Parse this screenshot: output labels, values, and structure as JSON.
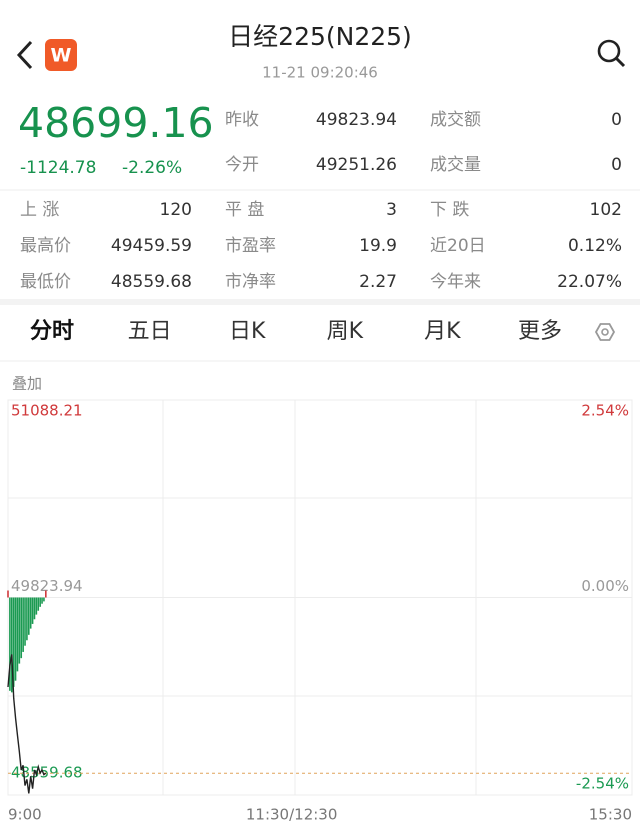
{
  "header": {
    "title": "日经225(N225)",
    "time": "11-21 09:20:46",
    "logo": "W"
  },
  "quote": {
    "price": 48699.16,
    "change": "-1124.78",
    "change_pct": "-2.26%"
  },
  "stats": [
    [
      "昨收",
      "49823.94",
      "成交额",
      "0"
    ],
    [
      "今开",
      "49251.26",
      "成交量",
      "0"
    ]
  ],
  "breadth": [
    [
      "上 涨",
      "120",
      "平 盘",
      "3",
      "下 跌",
      "102"
    ],
    [
      "最高价",
      "49459.59",
      "市盈率",
      "19.9",
      "近20日",
      "0.12%"
    ],
    [
      "最低价",
      "48559.68",
      "市净率",
      "2.27",
      "今年来",
      "22.07%"
    ]
  ],
  "tabs": [
    "分时",
    "五日",
    "日K",
    "周K",
    "月K",
    "更多"
  ],
  "overlay": "叠加",
  "chart_data": {
    "type": "line",
    "x": [
      0,
      1,
      2,
      3,
      4,
      5,
      6,
      7,
      8,
      9,
      10,
      11,
      12,
      13,
      14,
      15,
      16,
      17,
      18,
      19,
      20
    ],
    "values": [
      49251,
      49390,
      49460,
      49180,
      49050,
      48940,
      48840,
      48720,
      48750,
      48620,
      48660,
      48570,
      48680,
      48600,
      48720,
      48690,
      48740,
      48700,
      48720,
      48690,
      48699
    ],
    "color": "#222222",
    "bars": [
      0.09,
      -1.2,
      -1.22,
      -1.15,
      -1.07,
      -0.95,
      -0.85,
      -0.78,
      -0.7,
      -0.62,
      -0.55,
      -0.48,
      -0.4,
      -0.34,
      -0.28,
      -0.22,
      -0.17,
      -0.12,
      -0.08,
      -0.05,
      0.09
    ],
    "up_color": "#d0393b",
    "down_color": "#1b9a52",
    "xlim": [
      0,
      330
    ],
    "xticks": [
      {
        "value": 0,
        "label": "9:00"
      },
      {
        "value": 150,
        "label": "11:30/12:30"
      },
      {
        "value": 330,
        "label": "15:30"
      }
    ],
    "ylim": [
      48559.68,
      51088.21
    ],
    "yticks": [
      48559.68,
      49823.94,
      51088.21
    ],
    "y2lim": [
      -2.54,
      2.54
    ],
    "y2ticks": [
      {
        "value": -2.54,
        "label": "-2.54%"
      },
      {
        "value": 0,
        "label": "0.00%"
      },
      {
        "value": 2.54,
        "label": "2.54%"
      }
    ],
    "grid": true
  }
}
